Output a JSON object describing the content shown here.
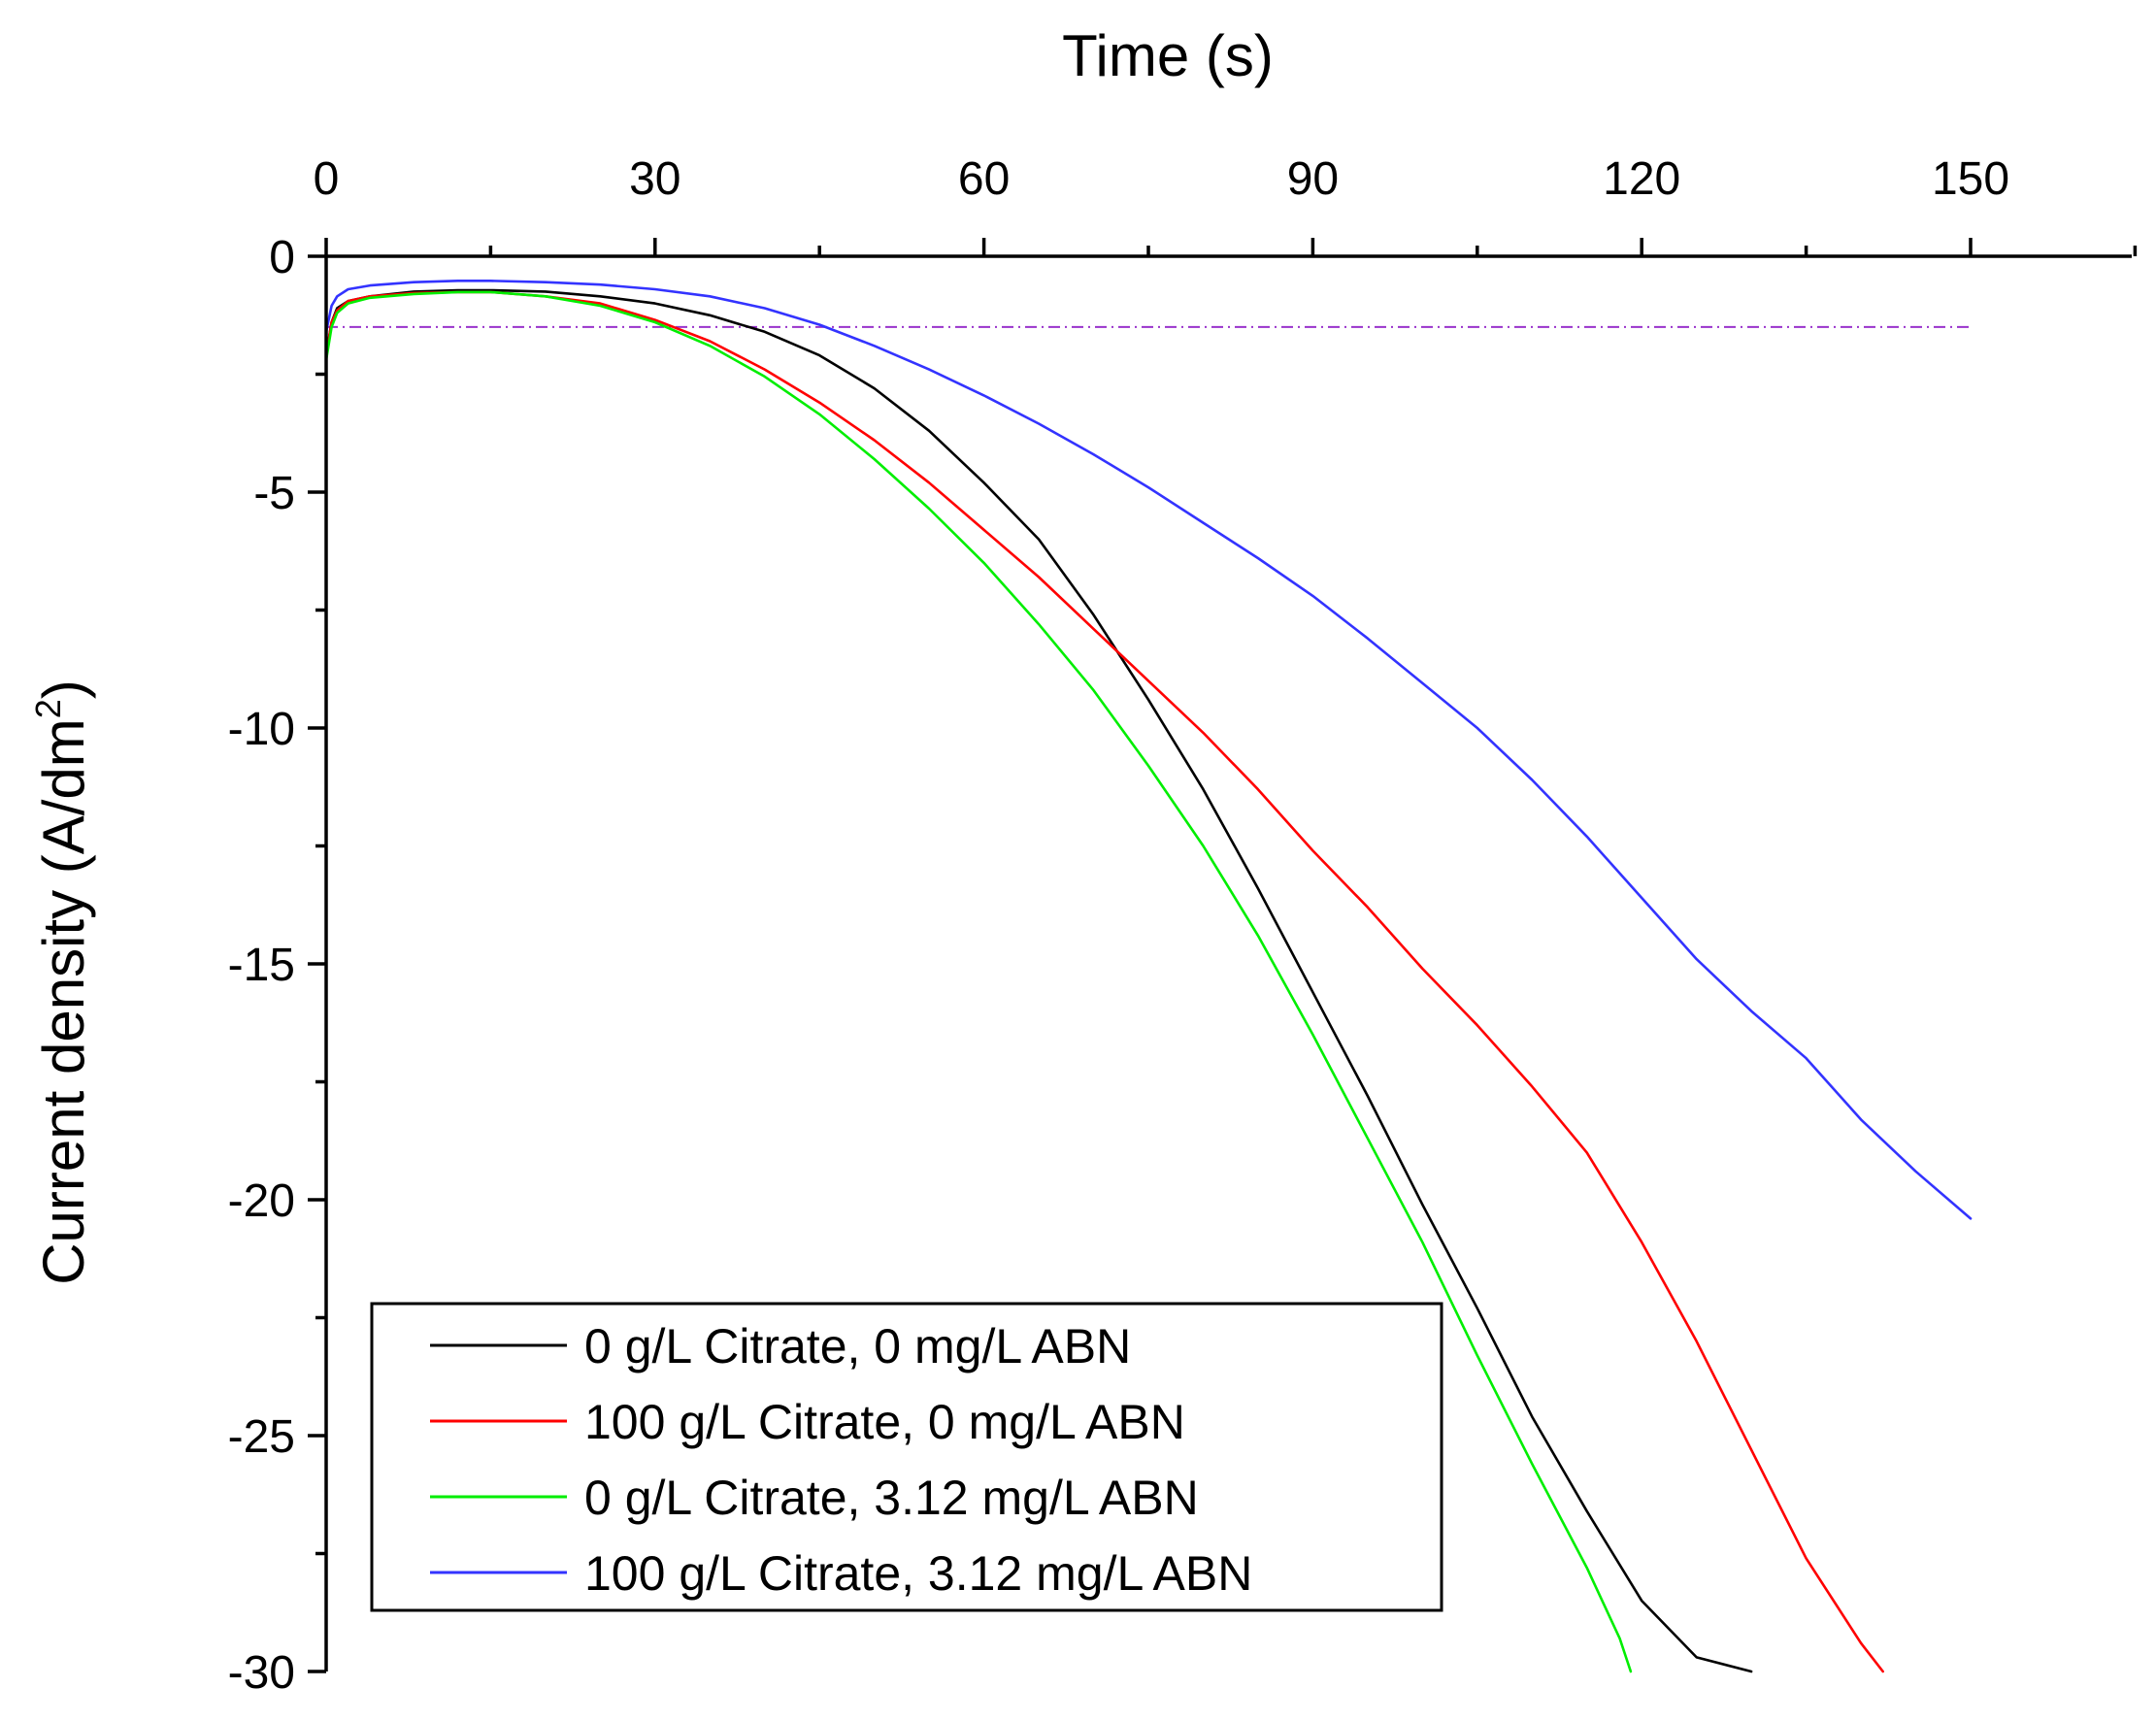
{
  "chart_data": {
    "type": "line",
    "xlabel": "Time (s)",
    "ylabel": "Current density (A/dm",
    "ylabel_sup": "2",
    "ylabel_close": ")",
    "xlim": [
      0,
      165
    ],
    "ylim": [
      -30,
      0
    ],
    "x_ticks": [
      0,
      30,
      60,
      90,
      120,
      150
    ],
    "y_ticks": [
      0,
      -5,
      -10,
      -15,
      -20,
      -25,
      -30
    ],
    "x_tick_labels": [
      "0",
      "30",
      "60",
      "90",
      "120",
      "150"
    ],
    "y_tick_labels": [
      "0",
      "-5",
      "-10",
      "-15",
      "-20",
      "-25",
      "-30"
    ],
    "legend_position": "bottom-left",
    "reference_line": {
      "y": -1.5,
      "x_start": 0,
      "x_end": 150,
      "color": "#9933cc",
      "style": "dash-dot"
    },
    "series": [
      {
        "name": "0 g/L Citrate, 0 mg/L ABN",
        "color": "#000000",
        "points": [
          [
            0,
            -2.1
          ],
          [
            0.5,
            -1.4
          ],
          [
            1,
            -1.1
          ],
          [
            2,
            -0.95
          ],
          [
            4,
            -0.85
          ],
          [
            8,
            -0.75
          ],
          [
            12,
            -0.72
          ],
          [
            15,
            -0.72
          ],
          [
            20,
            -0.75
          ],
          [
            25,
            -0.85
          ],
          [
            30,
            -1.0
          ],
          [
            35,
            -1.25
          ],
          [
            40,
            -1.6
          ],
          [
            45,
            -2.1
          ],
          [
            50,
            -2.8
          ],
          [
            55,
            -3.7
          ],
          [
            60,
            -4.8
          ],
          [
            65,
            -6.0
          ],
          [
            70,
            -7.6
          ],
          [
            75,
            -9.4
          ],
          [
            80,
            -11.3
          ],
          [
            85,
            -13.4
          ],
          [
            90,
            -15.6
          ],
          [
            95,
            -17.8
          ],
          [
            100,
            -20.1
          ],
          [
            105,
            -22.3
          ],
          [
            110,
            -24.6
          ],
          [
            115,
            -26.6
          ],
          [
            120,
            -28.5
          ],
          [
            125,
            -29.7
          ],
          [
            130,
            -30.0
          ]
        ]
      },
      {
        "name": "100 g/L Citrate, 0 mg/L ABN",
        "color": "#ff0000",
        "points": [
          [
            0,
            -2.1
          ],
          [
            0.5,
            -1.4
          ],
          [
            1,
            -1.15
          ],
          [
            2,
            -0.95
          ],
          [
            4,
            -0.85
          ],
          [
            8,
            -0.78
          ],
          [
            12,
            -0.76
          ],
          [
            15,
            -0.76
          ],
          [
            20,
            -0.85
          ],
          [
            25,
            -1.0
          ],
          [
            30,
            -1.35
          ],
          [
            35,
            -1.8
          ],
          [
            40,
            -2.4
          ],
          [
            45,
            -3.1
          ],
          [
            50,
            -3.9
          ],
          [
            55,
            -4.8
          ],
          [
            60,
            -5.8
          ],
          [
            65,
            -6.8
          ],
          [
            70,
            -7.9
          ],
          [
            75,
            -9.0
          ],
          [
            80,
            -10.1
          ],
          [
            85,
            -11.3
          ],
          [
            90,
            -12.6
          ],
          [
            95,
            -13.8
          ],
          [
            100,
            -15.1
          ],
          [
            105,
            -16.3
          ],
          [
            110,
            -17.6
          ],
          [
            115,
            -19.0
          ],
          [
            120,
            -20.9
          ],
          [
            125,
            -23.0
          ],
          [
            130,
            -25.3
          ],
          [
            135,
            -27.6
          ],
          [
            140,
            -29.4
          ],
          [
            142,
            -30.0
          ]
        ]
      },
      {
        "name": "0 g/L Citrate, 3.12 mg/L ABN",
        "color": "#00ee00",
        "points": [
          [
            0,
            -2.2
          ],
          [
            0.5,
            -1.5
          ],
          [
            1,
            -1.2
          ],
          [
            2,
            -1.0
          ],
          [
            4,
            -0.88
          ],
          [
            8,
            -0.8
          ],
          [
            12,
            -0.76
          ],
          [
            15,
            -0.76
          ],
          [
            20,
            -0.85
          ],
          [
            25,
            -1.05
          ],
          [
            30,
            -1.4
          ],
          [
            35,
            -1.9
          ],
          [
            40,
            -2.55
          ],
          [
            45,
            -3.35
          ],
          [
            50,
            -4.3
          ],
          [
            55,
            -5.35
          ],
          [
            60,
            -6.5
          ],
          [
            65,
            -7.8
          ],
          [
            70,
            -9.2
          ],
          [
            75,
            -10.8
          ],
          [
            80,
            -12.5
          ],
          [
            85,
            -14.4
          ],
          [
            90,
            -16.5
          ],
          [
            95,
            -18.7
          ],
          [
            100,
            -20.9
          ],
          [
            105,
            -23.3
          ],
          [
            110,
            -25.6
          ],
          [
            115,
            -27.8
          ],
          [
            118,
            -29.3
          ],
          [
            119,
            -30.0
          ]
        ]
      },
      {
        "name": "100 g/L Citrate, 3.12 mg/L ABN",
        "color": "#3333ff",
        "points": [
          [
            0,
            -1.6
          ],
          [
            0.5,
            -1.05
          ],
          [
            1,
            -0.85
          ],
          [
            2,
            -0.7
          ],
          [
            4,
            -0.62
          ],
          [
            8,
            -0.55
          ],
          [
            12,
            -0.52
          ],
          [
            15,
            -0.52
          ],
          [
            20,
            -0.55
          ],
          [
            25,
            -0.6
          ],
          [
            30,
            -0.7
          ],
          [
            35,
            -0.85
          ],
          [
            40,
            -1.1
          ],
          [
            45,
            -1.45
          ],
          [
            50,
            -1.9
          ],
          [
            55,
            -2.4
          ],
          [
            60,
            -2.95
          ],
          [
            65,
            -3.55
          ],
          [
            70,
            -4.2
          ],
          [
            75,
            -4.9
          ],
          [
            80,
            -5.65
          ],
          [
            85,
            -6.4
          ],
          [
            90,
            -7.2
          ],
          [
            95,
            -8.1
          ],
          [
            100,
            -9.05
          ],
          [
            105,
            -10.0
          ],
          [
            110,
            -11.1
          ],
          [
            115,
            -12.3
          ],
          [
            120,
            -13.6
          ],
          [
            125,
            -14.9
          ],
          [
            130,
            -16.0
          ],
          [
            135,
            -17.0
          ],
          [
            140,
            -18.3
          ],
          [
            145,
            -19.4
          ],
          [
            150,
            -20.4
          ]
        ]
      }
    ]
  }
}
